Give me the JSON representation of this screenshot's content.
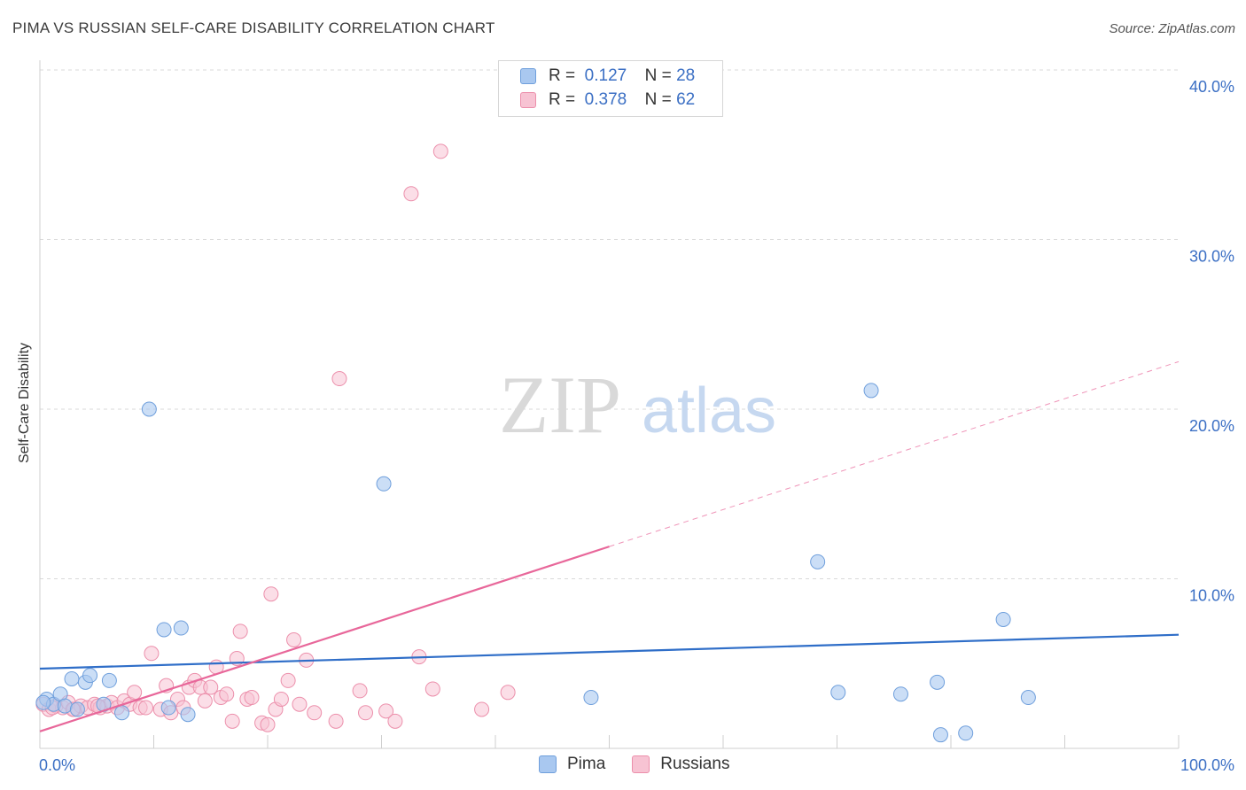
{
  "title": "PIMA VS RUSSIAN SELF-CARE DISABILITY CORRELATION CHART",
  "source": "Source: ZipAtlas.com",
  "watermark": {
    "zip": "ZIP",
    "atlas": "atlas"
  },
  "legend": {
    "r_label": "R =",
    "n_label": "N =",
    "rows": [
      {
        "name": "Pima",
        "r": "0.127",
        "n": "28",
        "fill": "#a9c8f0",
        "stroke": "#6f9fdc"
      },
      {
        "name": "Russians",
        "r": "0.378",
        "n": "62",
        "fill": "#f7c3d3",
        "stroke": "#ec8fab"
      }
    ]
  },
  "colors": {
    "blue_line": "#2f6ec8",
    "pink_line": "#e8679a",
    "axis_text": "#3b6fc4",
    "grid": "#d9d9d9"
  },
  "chart_data": {
    "type": "scatter",
    "title": "PIMA VS RUSSIAN SELF-CARE DISABILITY CORRELATION CHART",
    "xlabel": "",
    "ylabel": "Self-Care Disability",
    "xlim": [
      0,
      100
    ],
    "ylim": [
      0,
      40
    ],
    "x_tick_labels": [
      {
        "x": 0,
        "label": "0.0%"
      },
      {
        "x": 100,
        "label": "100.0%"
      }
    ],
    "y_tick_labels": [
      {
        "y": 10,
        "label": "10.0%"
      },
      {
        "y": 20,
        "label": "20.0%"
      },
      {
        "y": 30,
        "label": "30.0%"
      },
      {
        "y": 40,
        "label": "40.0%"
      }
    ],
    "series": [
      {
        "name": "Pima",
        "points": [
          [
            0.6,
            2.9
          ],
          [
            1.2,
            2.6
          ],
          [
            1.8,
            3.2
          ],
          [
            2.2,
            2.5
          ],
          [
            2.8,
            4.1
          ],
          [
            3.3,
            2.3
          ],
          [
            4.0,
            3.9
          ],
          [
            4.4,
            4.3
          ],
          [
            5.6,
            2.6
          ],
          [
            6.1,
            4.0
          ],
          [
            7.2,
            2.1
          ],
          [
            9.6,
            20.0
          ],
          [
            10.9,
            7.0
          ],
          [
            11.3,
            2.4
          ],
          [
            12.4,
            7.1
          ],
          [
            13.0,
            2.0
          ],
          [
            30.2,
            15.6
          ],
          [
            48.4,
            3.0
          ],
          [
            68.3,
            11.0
          ],
          [
            70.1,
            3.3
          ],
          [
            73.0,
            21.1
          ],
          [
            75.6,
            3.2
          ],
          [
            78.8,
            3.9
          ],
          [
            79.1,
            0.8
          ],
          [
            81.3,
            0.9
          ],
          [
            84.6,
            7.6
          ],
          [
            86.8,
            3.0
          ],
          [
            0.3,
            2.7
          ]
        ],
        "trend": {
          "x1": 0,
          "y1": 4.7,
          "x2": 100,
          "y2": 6.7
        }
      },
      {
        "name": "Russians",
        "points": [
          [
            0.3,
            2.6
          ],
          [
            0.8,
            2.3
          ],
          [
            1.4,
            2.5
          ],
          [
            2.0,
            2.4
          ],
          [
            2.5,
            2.7
          ],
          [
            3.0,
            2.3
          ],
          [
            3.6,
            2.5
          ],
          [
            4.2,
            2.4
          ],
          [
            4.8,
            2.6
          ],
          [
            5.3,
            2.4
          ],
          [
            5.9,
            2.5
          ],
          [
            6.3,
            2.7
          ],
          [
            6.8,
            2.4
          ],
          [
            7.4,
            2.8
          ],
          [
            7.9,
            2.6
          ],
          [
            8.3,
            3.3
          ],
          [
            8.8,
            2.4
          ],
          [
            9.8,
            5.6
          ],
          [
            10.6,
            2.3
          ],
          [
            11.1,
            3.7
          ],
          [
            11.5,
            2.1
          ],
          [
            12.1,
            2.9
          ],
          [
            12.6,
            2.4
          ],
          [
            13.1,
            3.6
          ],
          [
            13.6,
            4.0
          ],
          [
            14.1,
            3.6
          ],
          [
            14.5,
            2.8
          ],
          [
            15.0,
            3.6
          ],
          [
            15.5,
            4.8
          ],
          [
            15.9,
            3.0
          ],
          [
            16.4,
            3.2
          ],
          [
            16.9,
            1.6
          ],
          [
            17.3,
            5.3
          ],
          [
            17.6,
            6.9
          ],
          [
            18.2,
            2.9
          ],
          [
            18.6,
            3.0
          ],
          [
            19.5,
            1.5
          ],
          [
            20.0,
            1.4
          ],
          [
            20.3,
            9.1
          ],
          [
            20.7,
            2.3
          ],
          [
            21.2,
            2.9
          ],
          [
            21.8,
            4.0
          ],
          [
            22.3,
            6.4
          ],
          [
            22.8,
            2.6
          ],
          [
            23.4,
            5.2
          ],
          [
            24.1,
            2.1
          ],
          [
            26.3,
            21.8
          ],
          [
            26.0,
            1.6
          ],
          [
            28.1,
            3.4
          ],
          [
            28.6,
            2.1
          ],
          [
            30.4,
            2.2
          ],
          [
            31.2,
            1.6
          ],
          [
            32.6,
            32.7
          ],
          [
            33.3,
            5.4
          ],
          [
            34.5,
            3.5
          ],
          [
            35.2,
            35.2
          ],
          [
            38.8,
            2.3
          ],
          [
            41.1,
            3.3
          ],
          [
            1.1,
            2.4
          ],
          [
            2.9,
            2.3
          ],
          [
            5.1,
            2.5
          ],
          [
            9.3,
            2.4
          ]
        ],
        "trend_solid": {
          "x1": 0,
          "y1": 1.0,
          "x2": 50,
          "y2": 11.9
        },
        "trend_dashed": {
          "x1": 50,
          "y1": 11.9,
          "x2": 100,
          "y2": 22.8
        }
      }
    ]
  }
}
